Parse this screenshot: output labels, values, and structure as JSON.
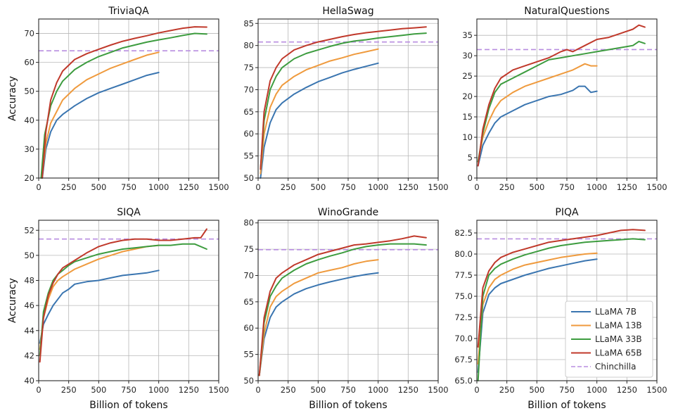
{
  "colors": {
    "LLaMA 7B": "#3a75b0",
    "LLaMA 13B": "#ef9a3d",
    "LLaMA 33B": "#3d9c3f",
    "LLaMA 65B": "#c0392b",
    "Chinchilla": "#b88de0"
  },
  "legend": {
    "placement": "lower-right of PIQA panel",
    "entries": [
      "LLaMA 7B",
      "LLaMA 13B",
      "LLaMA 33B",
      "LLaMA 65B",
      "Chinchilla"
    ]
  },
  "chart_data": [
    {
      "type": "line",
      "title": "TriviaQA",
      "xlabel": "",
      "ylabel": "Accuracy",
      "xlim": [
        0,
        1500
      ],
      "ylim": [
        20,
        75
      ],
      "xticks": [
        0,
        250,
        500,
        750,
        1000,
        1250,
        1500
      ],
      "yticks": [
        20,
        30,
        40,
        50,
        60,
        70
      ],
      "grid": true,
      "reference": {
        "name": "Chinchilla",
        "value": 64
      },
      "series": [
        {
          "name": "LLaMA 7B",
          "x": [
            30,
            60,
            100,
            150,
            200,
            300,
            400,
            500,
            600,
            700,
            800,
            900,
            1000
          ],
          "y": [
            20,
            30,
            36,
            40,
            42,
            45,
            47.5,
            49.5,
            51,
            52.5,
            54,
            55.5,
            56.5
          ]
        },
        {
          "name": "LLaMA 13B",
          "x": [
            30,
            60,
            100,
            150,
            200,
            300,
            400,
            500,
            600,
            700,
            800,
            900,
            1000
          ],
          "y": [
            21,
            32,
            39,
            43,
            47,
            51,
            54,
            56,
            58,
            59.5,
            61,
            62.5,
            63.5
          ]
        },
        {
          "name": "LLaMA 33B",
          "x": [
            20,
            50,
            100,
            150,
            200,
            300,
            400,
            500,
            600,
            700,
            800,
            900,
            1000,
            1100,
            1200,
            1300,
            1400
          ],
          "y": [
            20,
            35,
            45,
            50,
            53.5,
            57.5,
            60,
            62,
            63.5,
            65,
            66,
            67,
            67.8,
            68.5,
            69.3,
            70,
            69.8
          ]
        },
        {
          "name": "LLaMA 65B",
          "x": [
            30,
            60,
            100,
            150,
            200,
            300,
            400,
            500,
            600,
            700,
            800,
            900,
            1000,
            1100,
            1200,
            1300,
            1400
          ],
          "y": [
            20,
            36,
            47,
            53,
            57,
            61,
            63,
            64.5,
            66,
            67.3,
            68.3,
            69.2,
            70.2,
            71,
            71.8,
            72.3,
            72.2
          ]
        }
      ]
    },
    {
      "type": "line",
      "title": "HellaSwag",
      "xlabel": "",
      "ylabel": "",
      "xlim": [
        0,
        1500
      ],
      "ylim": [
        50,
        86
      ],
      "xticks": [
        0,
        250,
        500,
        750,
        1000,
        1250,
        1500
      ],
      "yticks": [
        50,
        55,
        60,
        65,
        70,
        75,
        80,
        85
      ],
      "grid": true,
      "reference": {
        "name": "Chinchilla",
        "value": 80.8
      },
      "series": [
        {
          "name": "LLaMA 7B",
          "x": [
            20,
            50,
            100,
            150,
            200,
            300,
            400,
            500,
            600,
            700,
            800,
            900,
            1000
          ],
          "y": [
            50,
            57,
            62.5,
            65.5,
            67,
            69,
            70.5,
            71.8,
            72.8,
            73.8,
            74.6,
            75.3,
            76
          ]
        },
        {
          "name": "LLaMA 13B",
          "x": [
            20,
            50,
            100,
            150,
            200,
            300,
            400,
            500,
            600,
            700,
            800,
            900,
            1000
          ],
          "y": [
            51,
            60,
            66,
            69,
            71,
            73,
            74.5,
            75.5,
            76.5,
            77.2,
            78,
            78.6,
            79.2
          ]
        },
        {
          "name": "LLaMA 33B",
          "x": [
            20,
            50,
            100,
            150,
            200,
            300,
            400,
            500,
            600,
            700,
            800,
            900,
            1000,
            1100,
            1200,
            1300,
            1400
          ],
          "y": [
            52,
            63,
            70,
            73,
            75,
            77,
            78.2,
            79,
            79.8,
            80.5,
            81,
            81.3,
            81.7,
            82,
            82.3,
            82.6,
            82.8
          ]
        },
        {
          "name": "LLaMA 65B",
          "x": [
            20,
            50,
            100,
            150,
            200,
            300,
            400,
            500,
            600,
            700,
            800,
            900,
            1000,
            1100,
            1200,
            1300,
            1400
          ],
          "y": [
            52,
            65,
            72,
            75,
            77,
            79,
            80,
            80.8,
            81.4,
            82,
            82.5,
            82.9,
            83.2,
            83.5,
            83.8,
            84,
            84.2
          ]
        }
      ]
    },
    {
      "type": "line",
      "title": "NaturalQuestions",
      "xlabel": "",
      "ylabel": "",
      "xlim": [
        0,
        1500
      ],
      "ylim": [
        0,
        39
      ],
      "xticks": [
        0,
        250,
        500,
        750,
        1000,
        1250,
        1500
      ],
      "yticks": [
        0,
        5,
        10,
        15,
        20,
        25,
        30,
        35
      ],
      "grid": true,
      "reference": {
        "name": "Chinchilla",
        "value": 31.5
      },
      "series": [
        {
          "name": "LLaMA 7B",
          "x": [
            10,
            50,
            100,
            150,
            200,
            300,
            400,
            500,
            600,
            700,
            800,
            850,
            900,
            950,
            1000
          ],
          "y": [
            3,
            8,
            11,
            13.5,
            15,
            16.5,
            18,
            19,
            20,
            20.5,
            21.5,
            22.5,
            22.5,
            21,
            21.3
          ]
        },
        {
          "name": "LLaMA 13B",
          "x": [
            10,
            50,
            100,
            150,
            200,
            300,
            400,
            500,
            600,
            700,
            800,
            900,
            950,
            1000
          ],
          "y": [
            4,
            10,
            14,
            17,
            19,
            21,
            22.5,
            23.5,
            24.5,
            25.5,
            26.5,
            28,
            27.5,
            27.5
          ]
        },
        {
          "name": "LLaMA 33B",
          "x": [
            10,
            50,
            100,
            150,
            200,
            300,
            400,
            500,
            600,
            700,
            800,
            900,
            1000,
            1100,
            1200,
            1300,
            1350,
            1400
          ],
          "y": [
            4,
            11,
            17,
            21,
            23,
            24.5,
            26,
            27.5,
            29,
            29.5,
            30,
            30.5,
            31,
            31.5,
            32,
            32.5,
            33.5,
            33
          ]
        },
        {
          "name": "LLaMA 65B",
          "x": [
            10,
            50,
            100,
            150,
            200,
            300,
            400,
            500,
            600,
            700,
            750,
            800,
            900,
            1000,
            1100,
            1200,
            1300,
            1350,
            1400
          ],
          "y": [
            3,
            12,
            18,
            22,
            24.5,
            26.5,
            27.5,
            28.5,
            29.5,
            31,
            31.5,
            31,
            32.5,
            34,
            34.5,
            35.5,
            36.5,
            37.5,
            37
          ]
        }
      ]
    },
    {
      "type": "line",
      "title": "SIQA",
      "xlabel": "Billion of tokens",
      "ylabel": "Accuracy",
      "xlim": [
        0,
        1500
      ],
      "ylim": [
        40,
        52.8
      ],
      "xticks": [
        0,
        250,
        500,
        750,
        1000,
        1250,
        1500
      ],
      "yticks": [
        40,
        42,
        44,
        46,
        48,
        50,
        52
      ],
      "grid": true,
      "reference": {
        "name": "Chinchilla",
        "value": 51.3
      },
      "series": [
        {
          "name": "LLaMA 7B",
          "x": [
            10,
            40,
            80,
            120,
            160,
            200,
            250,
            300,
            400,
            500,
            600,
            700,
            800,
            900,
            1000
          ],
          "y": [
            43,
            44.5,
            45.3,
            46,
            46.5,
            47,
            47.3,
            47.7,
            47.9,
            48,
            48.2,
            48.4,
            48.5,
            48.6,
            48.8
          ]
        },
        {
          "name": "LLaMA 13B",
          "x": [
            10,
            40,
            80,
            120,
            160,
            200,
            250,
            300,
            400,
            500,
            600,
            700,
            800,
            900,
            1000
          ],
          "y": [
            42.5,
            45,
            46.5,
            47.5,
            48,
            48.3,
            48.6,
            48.9,
            49.3,
            49.7,
            50,
            50.3,
            50.5,
            50.7,
            50.8
          ]
        },
        {
          "name": "LLaMA 33B",
          "x": [
            10,
            40,
            80,
            120,
            160,
            200,
            250,
            300,
            400,
            500,
            600,
            700,
            800,
            900,
            1000,
            1100,
            1200,
            1300,
            1400
          ],
          "y": [
            42,
            45.5,
            47,
            48,
            48.5,
            48.8,
            49.2,
            49.5,
            49.8,
            50.1,
            50.3,
            50.5,
            50.6,
            50.7,
            50.8,
            50.8,
            50.9,
            50.9,
            50.5
          ]
        },
        {
          "name": "LLaMA 65B",
          "x": [
            10,
            40,
            80,
            120,
            160,
            200,
            250,
            300,
            400,
            500,
            600,
            700,
            800,
            900,
            1000,
            1100,
            1200,
            1300,
            1350,
            1400
          ],
          "y": [
            41.5,
            45,
            46.8,
            47.8,
            48.5,
            49,
            49.3,
            49.6,
            50.2,
            50.7,
            51,
            51.2,
            51.3,
            51.3,
            51.2,
            51.2,
            51.3,
            51.4,
            51.4,
            52.1
          ]
        }
      ]
    },
    {
      "type": "line",
      "title": "WinoGrande",
      "xlabel": "Billion of tokens",
      "ylabel": "",
      "xlim": [
        0,
        1500
      ],
      "ylim": [
        50,
        80.5
      ],
      "xticks": [
        0,
        250,
        500,
        750,
        1000,
        1250,
        1500
      ],
      "yticks": [
        50,
        55,
        60,
        65,
        70,
        75,
        80
      ],
      "grid": true,
      "reference": {
        "name": "Chinchilla",
        "value": 74.9
      },
      "series": [
        {
          "name": "LLaMA 7B",
          "x": [
            10,
            50,
            100,
            150,
            200,
            300,
            400,
            500,
            600,
            700,
            800,
            900,
            1000
          ],
          "y": [
            51,
            58,
            62,
            64,
            65,
            66.5,
            67.5,
            68.2,
            68.8,
            69.3,
            69.8,
            70.2,
            70.5
          ]
        },
        {
          "name": "LLaMA 13B",
          "x": [
            10,
            50,
            100,
            150,
            200,
            300,
            400,
            500,
            600,
            700,
            800,
            900,
            1000
          ],
          "y": [
            51,
            59,
            64,
            66,
            67,
            68.5,
            69.5,
            70.5,
            71,
            71.5,
            72.2,
            72.7,
            73
          ]
        },
        {
          "name": "LLaMA 33B",
          "x": [
            10,
            50,
            100,
            150,
            200,
            300,
            400,
            500,
            600,
            700,
            800,
            900,
            1000,
            1100,
            1200,
            1300,
            1400
          ],
          "y": [
            51,
            61,
            66,
            68,
            69.5,
            71,
            72.2,
            73,
            73.7,
            74.3,
            75,
            75.5,
            75.8,
            76,
            76,
            76,
            75.8
          ]
        },
        {
          "name": "LLaMA 65B",
          "x": [
            10,
            50,
            100,
            150,
            200,
            300,
            400,
            500,
            600,
            700,
            800,
            900,
            1000,
            1100,
            1200,
            1300,
            1400
          ],
          "y": [
            51,
            62,
            67,
            69.5,
            70.5,
            72,
            73,
            74,
            74.6,
            75.2,
            75.8,
            76,
            76.3,
            76.6,
            77,
            77.5,
            77.2
          ]
        }
      ]
    },
    {
      "type": "line",
      "title": "PIQA",
      "xlabel": "Billion of tokens",
      "ylabel": "",
      "xlim": [
        0,
        1500
      ],
      "ylim": [
        65,
        84
      ],
      "xticks": [
        0,
        250,
        500,
        750,
        1000,
        1250,
        1500
      ],
      "yticks": [
        65.0,
        67.5,
        70.0,
        72.5,
        75.0,
        77.5,
        80.0,
        82.5
      ],
      "yticklabels": [
        "65.0",
        "67.5",
        "70.0",
        "72.5",
        "75.0",
        "77.5",
        "80.0",
        "82.5"
      ],
      "grid": true,
      "reference": {
        "name": "Chinchilla",
        "value": 81.8
      },
      "series": [
        {
          "name": "LLaMA 7B",
          "x": [
            10,
            50,
            100,
            150,
            200,
            300,
            400,
            500,
            600,
            700,
            800,
            900,
            1000
          ],
          "y": [
            66,
            73,
            75.2,
            76,
            76.5,
            77,
            77.5,
            77.9,
            78.3,
            78.6,
            78.9,
            79.2,
            79.4
          ]
        },
        {
          "name": "LLaMA 13B",
          "x": [
            10,
            50,
            100,
            150,
            200,
            300,
            400,
            500,
            600,
            700,
            800,
            900,
            1000
          ],
          "y": [
            67,
            74,
            76,
            77,
            77.5,
            78.2,
            78.7,
            79,
            79.3,
            79.6,
            79.8,
            80,
            80.1
          ]
        },
        {
          "name": "LLaMA 33B",
          "x": [
            10,
            50,
            100,
            150,
            200,
            300,
            400,
            500,
            600,
            700,
            800,
            900,
            1000,
            1100,
            1200,
            1300,
            1400
          ],
          "y": [
            65,
            75,
            77.5,
            78.3,
            78.8,
            79.4,
            79.9,
            80.3,
            80.7,
            81,
            81.2,
            81.4,
            81.5,
            81.6,
            81.7,
            81.8,
            81.7
          ]
        },
        {
          "name": "LLaMA 65B",
          "x": [
            10,
            50,
            100,
            150,
            200,
            300,
            400,
            500,
            600,
            700,
            800,
            900,
            1000,
            1100,
            1200,
            1300,
            1400
          ],
          "y": [
            69,
            76,
            78,
            79,
            79.6,
            80.2,
            80.6,
            81,
            81.4,
            81.6,
            81.8,
            82,
            82.2,
            82.5,
            82.8,
            82.9,
            82.8
          ]
        }
      ]
    }
  ]
}
